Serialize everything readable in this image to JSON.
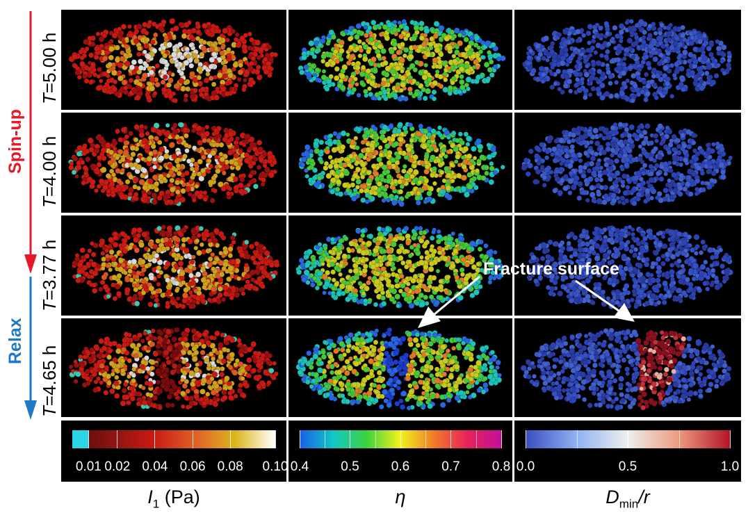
{
  "rows": [
    {
      "var": "T",
      "value": "=5.00 h"
    },
    {
      "var": "T",
      "value": "=4.00 h"
    },
    {
      "var": "T",
      "value": "=3.77 h"
    },
    {
      "var": "T",
      "value": "=4.65 h"
    }
  ],
  "phases": {
    "spin_up": {
      "label": "Spin-up",
      "color": "#e41a2a"
    },
    "relax": {
      "label": "Relax",
      "color": "#1f78c8"
    }
  },
  "annotation": {
    "text": "Fracture surface"
  },
  "colorbars": [
    {
      "ticks": [
        "0.01",
        "0.02",
        "0.04",
        "0.06",
        "0.08",
        "0.10"
      ],
      "colors": [
        "#2bd5e5",
        "#6b1010",
        "#c81a12",
        "#e2652a",
        "#dbb41a",
        "#ffffff"
      ]
    },
    {
      "ticks": [
        "0.4",
        "0.5",
        "0.6",
        "0.7",
        "0.8"
      ],
      "colors": [
        "#1a5fe6",
        "#12c7c7",
        "#3fd23f",
        "#f2f21e",
        "#f07a2a",
        "#e8225a",
        "#c0109a"
      ]
    },
    {
      "ticks": [
        "0.0",
        "0.5",
        "1.0"
      ],
      "colors": [
        "#3a4ec0",
        "#8fb2f2",
        "#eeeeee",
        "#eb9a7f",
        "#b41428"
      ]
    }
  ],
  "column_labels": [
    {
      "main": "I",
      "sub": "1",
      "rest": " (Pa)"
    },
    {
      "main": "η",
      "sub": "",
      "rest": ""
    },
    {
      "main": "D",
      "sub": "min",
      "rest": "/r"
    }
  ],
  "panel_colormaps": {
    "col1": [
      "#9a1010",
      "#c91a14",
      "#d85a22",
      "#cfa31c",
      "#d9d9d9"
    ],
    "col2": [
      "#2a66e0",
      "#1dc3b8",
      "#45c93a",
      "#c9c91e",
      "#e07a28"
    ],
    "col3": [
      "#2b44b8",
      "#3551c4",
      "#4160cc",
      "#2b3aa0"
    ]
  }
}
